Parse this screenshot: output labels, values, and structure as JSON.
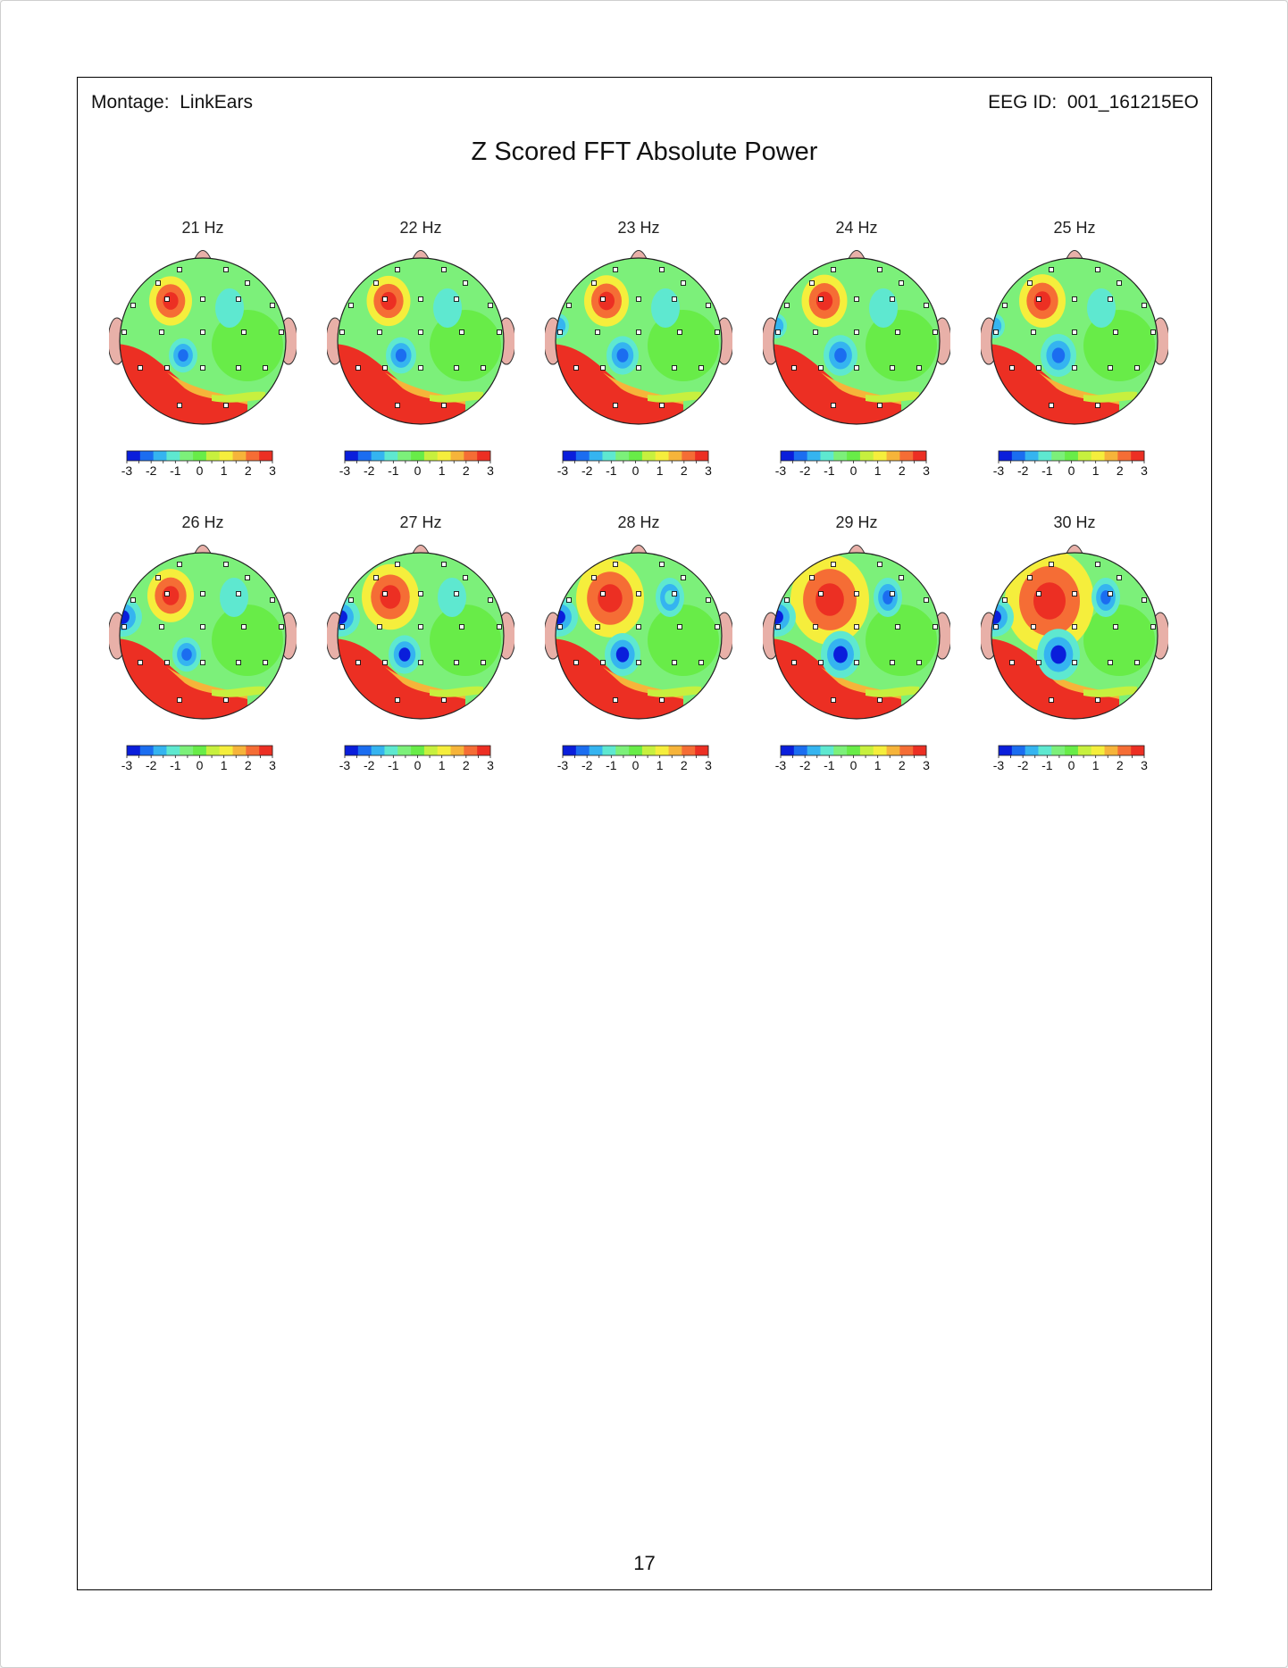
{
  "header": {
    "montage_label": "Montage:",
    "montage_value": "LinkEars",
    "eeg_id_label": "EEG ID:",
    "eeg_id_value": "001_161215EO"
  },
  "title": "Z Scored FFT Absolute Power",
  "page_number": "17",
  "colorbar": {
    "ticks": [
      "-3",
      "-2",
      "-1",
      "0",
      "1",
      "2",
      "3"
    ],
    "colors": [
      "#0a1edb",
      "#1b6df0",
      "#35b4f0",
      "#5ee8d0",
      "#7cf07a",
      "#68ec48",
      "#c7f03e",
      "#f5ee3c",
      "#f6b43a",
      "#f56d35",
      "#ec2f23"
    ]
  },
  "maps": [
    {
      "label": "21 Hz"
    },
    {
      "label": "22 Hz"
    },
    {
      "label": "23 Hz"
    },
    {
      "label": "24 Hz"
    },
    {
      "label": "25 Hz"
    },
    {
      "label": "26 Hz"
    },
    {
      "label": "27 Hz"
    },
    {
      "label": "28 Hz"
    },
    {
      "label": "29 Hz"
    },
    {
      "label": "30 Hz"
    }
  ]
}
